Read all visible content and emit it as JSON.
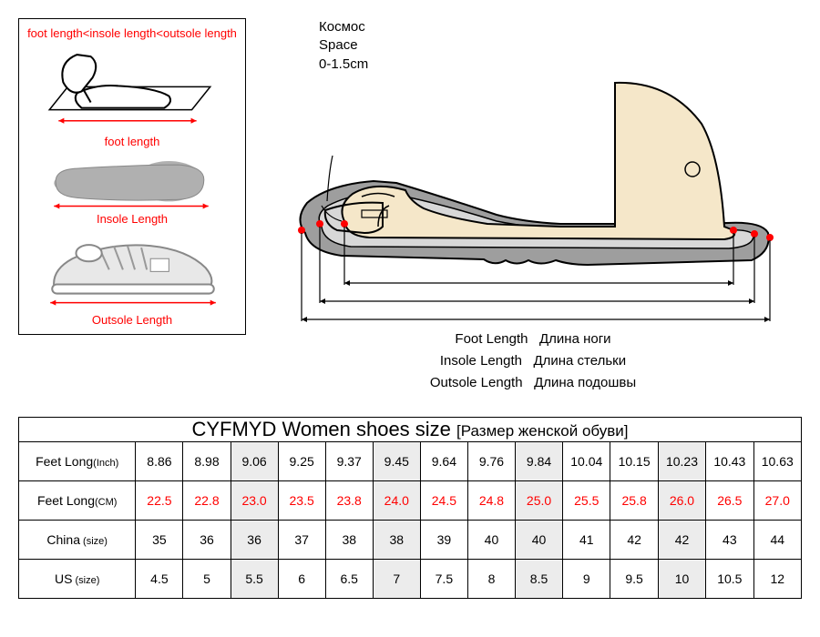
{
  "leftPanel": {
    "formula": "foot length<insole length<outsole length",
    "footLabel": "foot length",
    "insoleLabel": "Insole Length",
    "outsoleLabel": "Outsole Length"
  },
  "diagram": {
    "spaceRu": "Космос",
    "spaceEn": "Space",
    "spaceRange": "0-1.5cm",
    "footLength": "Foot Length",
    "footLengthRu": "Длина ноги",
    "insoleLength": "Insole Length",
    "insoleLengthRu": "Длина стельки",
    "outsoleLength": "Outsole Length",
    "outsoleLengthRu": "Длина подошвы"
  },
  "table": {
    "titleMain": "CYFMYD Women shoes size",
    "titleSub": "[Размер женской обуви]",
    "rows": [
      {
        "label": "Feet Long",
        "sublabel": "(Inch)",
        "red": false,
        "values": [
          "8.86",
          "8.98",
          "9.06",
          "9.25",
          "9.37",
          "9.45",
          "9.64",
          "9.76",
          "9.84",
          "10.04",
          "10.15",
          "10.23",
          "10.43",
          "10.63"
        ]
      },
      {
        "label": "Feet Long",
        "sublabel": "(CM)",
        "red": true,
        "values": [
          "22.5",
          "22.8",
          "23.0",
          "23.5",
          "23.8",
          "24.0",
          "24.5",
          "24.8",
          "25.0",
          "25.5",
          "25.8",
          "26.0",
          "26.5",
          "27.0"
        ]
      },
      {
        "label": "China",
        "sublabel": " (size)",
        "red": false,
        "values": [
          "35",
          "36",
          "36",
          "37",
          "38",
          "38",
          "39",
          "40",
          "40",
          "41",
          "42",
          "42",
          "43",
          "44"
        ]
      },
      {
        "label": "US",
        "sublabel": " (size)",
        "red": false,
        "values": [
          "4.5",
          "5",
          "5.5",
          "6",
          "6.5",
          "7",
          "7.5",
          "8",
          "8.5",
          "9",
          "9.5",
          "10",
          "10.5",
          "12"
        ]
      }
    ],
    "shadedCols": [
      2,
      5,
      8,
      11
    ]
  },
  "colors": {
    "red": "#ff0000",
    "black": "#000000",
    "shaded": "#ececec",
    "illustGray": "#b0b0b0",
    "illustLight": "#e8e8e8",
    "footFill": "#f5e7c9",
    "shoeGray": "#9e9e9e"
  }
}
